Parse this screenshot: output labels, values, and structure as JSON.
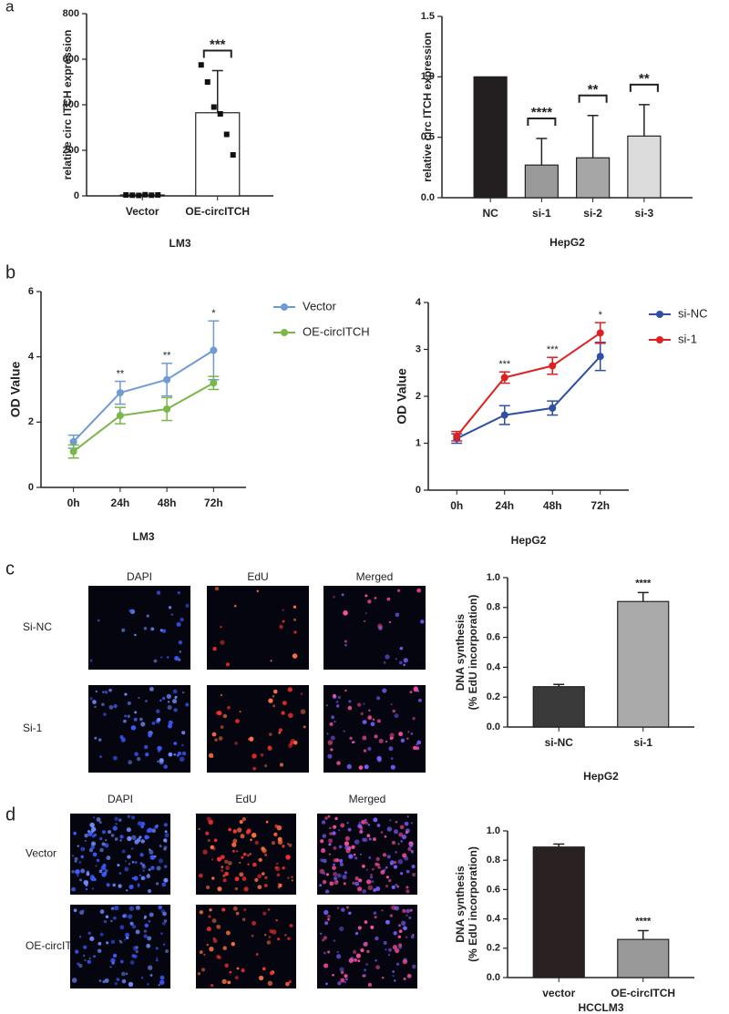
{
  "panel_labels": [
    "a",
    "b",
    "c",
    "d"
  ],
  "image_grids": [
    {
      "columns": [
        "DAPI",
        "EdU",
        "Merged"
      ],
      "rows": [
        "Si-NC",
        "Si-1"
      ]
    },
    {
      "columns": [
        "DAPI",
        "EdU",
        "Merged"
      ],
      "rows": [
        "Vector",
        "OE-circITCH"
      ]
    }
  ],
  "chart_data": [
    {
      "type": "bar",
      "ylabel": "relative circ ITCH expression",
      "xlabel": "LM3",
      "categories": [
        "Vector",
        "OE-circITCH"
      ],
      "values": [
        4,
        365
      ],
      "errors": [
        2,
        185
      ],
      "points": [
        [
          4,
          3,
          2,
          5,
          3,
          4
        ],
        [
          575,
          500,
          390,
          360,
          270,
          180
        ]
      ],
      "colors": [
        "#ffffff",
        "#ffffff"
      ],
      "annotations": [
        null,
        "***"
      ],
      "brackets": true,
      "ylim": [
        0,
        800
      ],
      "yticks": [
        0,
        200,
        400,
        600,
        800
      ]
    },
    {
      "type": "bar",
      "ylabel": "relative circ ITCH expression",
      "xlabel": "HepG2",
      "categories": [
        "NC",
        "si-1",
        "si-2",
        "si-3"
      ],
      "values": [
        1.0,
        0.27,
        0.33,
        0.51
      ],
      "errors": [
        0,
        0.22,
        0.35,
        0.26
      ],
      "colors": [
        "#231f20",
        "#9a9a9a",
        "#a6a6a6",
        "#dcdcdc"
      ],
      "annotations": [
        null,
        "****",
        "**",
        "**"
      ],
      "brackets": true,
      "ylim": [
        0,
        1.5
      ],
      "yticks": [
        {
          "value": 0,
          "label": "0.0"
        },
        {
          "value": 0.5,
          "label": "0.5"
        },
        {
          "value": 1,
          "label": "1.0"
        },
        {
          "value": 1.5,
          "label": "1.5"
        }
      ]
    },
    {
      "type": "line",
      "ylabel": "OD Value",
      "xlabel": "LM3",
      "categories": [
        "0h",
        "24h",
        "48h",
        "72h"
      ],
      "series": [
        {
          "name": "Vector",
          "color": "#6f9bd2",
          "values": [
            1.4,
            2.9,
            3.3,
            4.2
          ],
          "errors": [
            0.2,
            0.35,
            0.5,
            0.9
          ]
        },
        {
          "name": "OE-circITCH",
          "color": "#7ab648",
          "values": [
            1.1,
            2.2,
            2.4,
            3.2
          ],
          "errors": [
            0.2,
            0.25,
            0.35,
            0.2
          ]
        }
      ],
      "annotations": [
        null,
        "**",
        "**",
        "*"
      ],
      "ylim": [
        0,
        6
      ],
      "yticks": [
        0,
        2,
        4,
        6
      ]
    },
    {
      "type": "line",
      "ylabel": "OD Value",
      "xlabel": "HepG2",
      "categories": [
        "0h",
        "24h",
        "48h",
        "72h"
      ],
      "series": [
        {
          "name": "si-NC",
          "color": "#2e4fa3",
          "values": [
            1.1,
            1.6,
            1.75,
            2.85
          ],
          "errors": [
            0.1,
            0.2,
            0.15,
            0.3
          ]
        },
        {
          "name": "si-1",
          "color": "#e02020",
          "values": [
            1.15,
            2.4,
            2.65,
            3.35
          ],
          "errors": [
            0.1,
            0.12,
            0.18,
            0.22
          ]
        }
      ],
      "annotations": [
        null,
        "***",
        "***",
        "*"
      ],
      "ylim": [
        0,
        4
      ],
      "yticks": [
        0,
        1,
        2,
        3,
        4
      ]
    },
    {
      "type": "bar",
      "ylabel": [
        "DNA synthesis",
        "(% EdU incorporation)"
      ],
      "xlabel": "HepG2",
      "categories": [
        "si-NC",
        "si-1"
      ],
      "values": [
        0.27,
        0.84
      ],
      "errors": [
        0.015,
        0.06
      ],
      "colors": [
        "#3a3a3a",
        "#aaaaaa"
      ],
      "annotations": [
        null,
        "****"
      ],
      "ylim": [
        0,
        1
      ],
      "yticks": [
        {
          "value": 0,
          "label": "0.0"
        },
        {
          "value": 0.2,
          "label": "0.2"
        },
        {
          "value": 0.4,
          "label": "0.4"
        },
        {
          "value": 0.6,
          "label": "0.6"
        },
        {
          "value": 0.8,
          "label": "0.8"
        },
        {
          "value": 1,
          "label": "1.0"
        }
      ]
    },
    {
      "type": "bar",
      "ylabel": [
        "DNA synthesis",
        "(% EdU incorporation)"
      ],
      "xlabel": "HCCLM3",
      "categories": [
        "vector",
        "OE-circITCH"
      ],
      "values": [
        0.89,
        0.26
      ],
      "errors": [
        0.02,
        0.06
      ],
      "colors": [
        "#2a2222",
        "#999999"
      ],
      "annotations": [
        null,
        "****"
      ],
      "ylim": [
        0,
        1
      ],
      "yticks": [
        {
          "value": 0,
          "label": "0.0"
        },
        {
          "value": 0.2,
          "label": "0.2"
        },
        {
          "value": 0.4,
          "label": "0.4"
        },
        {
          "value": 0.6,
          "label": "0.6"
        },
        {
          "value": 0.8,
          "label": "0.8"
        },
        {
          "value": 1,
          "label": "1.0"
        }
      ]
    }
  ]
}
